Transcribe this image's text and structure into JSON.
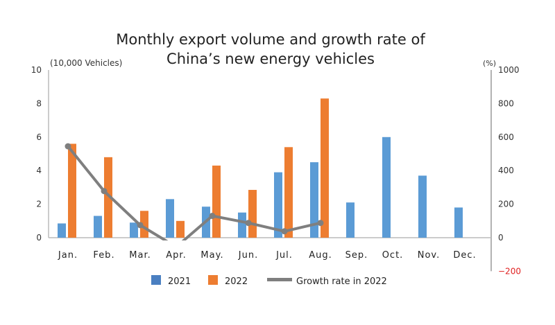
{
  "chart_data": {
    "type": "bar",
    "title": "Monthly export volume and growth rate of China’s new energy vehicles",
    "title_lines": [
      "Monthly export volume and growth rate of",
      "China’s new energy vehicles"
    ],
    "ylabel": "(10,000 Vehicles)",
    "y2label": "(%)",
    "ylim": [
      0,
      10
    ],
    "yticks": [
      0,
      2,
      4,
      6,
      8,
      10
    ],
    "y2lim": [
      -200,
      1000
    ],
    "y2ticks": [
      -200,
      0,
      200,
      400,
      600,
      800,
      1000
    ],
    "y2_negative_color": "#e02020",
    "categories": [
      "Jan.",
      "Feb.",
      "Mar.",
      "Apr.",
      "May.",
      "Jun.",
      "Jul.",
      "Aug.",
      "Sep.",
      "Oct.",
      "Nov.",
      "Dec."
    ],
    "series": [
      {
        "name": "2021",
        "type": "bar",
        "axis": "left",
        "color": "#5b9bd5",
        "values": [
          0.85,
          1.3,
          0.9,
          2.3,
          1.85,
          1.5,
          3.9,
          4.5,
          2.1,
          6.0,
          3.7,
          1.8
        ]
      },
      {
        "name": "2022",
        "type": "bar",
        "axis": "left",
        "color": "#ed7d31",
        "values": [
          5.6,
          4.8,
          1.6,
          1.0,
          4.3,
          2.85,
          5.4,
          8.3,
          null,
          null,
          null,
          null
        ]
      },
      {
        "name": "Growth rate in 2022",
        "type": "line",
        "axis": "right",
        "color": "#7f7f7f",
        "values": [
          545,
          278,
          75,
          -55,
          130,
          88,
          38,
          88,
          null,
          null,
          null,
          null
        ]
      }
    ],
    "legend_position": "bottom",
    "legend_swatch_2021": "#4a7fc1",
    "grid": false
  }
}
